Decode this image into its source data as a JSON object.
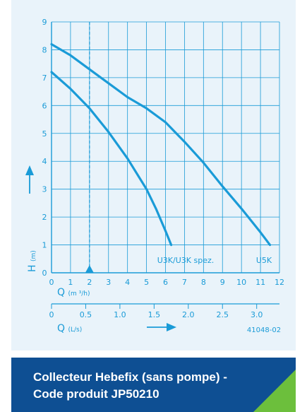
{
  "chart_data": {
    "type": "line",
    "title": "",
    "ylabel": "H",
    "ylabel_unit": "(m)",
    "xlabel_primary": "Q",
    "xlabel_primary_unit": "(m ³/h)",
    "xlabel_secondary": "Q",
    "xlabel_secondary_unit": "(L/s)",
    "xlim": [
      0,
      12
    ],
    "ylim": [
      0,
      9
    ],
    "x_ticks": [
      "0",
      "1",
      "2",
      "3",
      "4",
      "5",
      "6",
      "7",
      "8",
      "9",
      "10",
      "11",
      "12"
    ],
    "y_ticks": [
      "0",
      "1",
      "2",
      "3",
      "4",
      "5",
      "6",
      "7",
      "8",
      "9"
    ],
    "secondary_ticks": [
      "0",
      "0.5",
      "1.0",
      "1.5",
      "2.0",
      "2.5",
      "3.0"
    ],
    "secondary_tick_values": [
      0,
      0.5,
      1.0,
      1.5,
      2.0,
      2.5,
      3.0
    ],
    "grid": true,
    "marker_x": 2,
    "series": [
      {
        "name": "U3K/U3K spez.",
        "x": [
          0,
          1,
          2,
          3,
          4,
          5,
          5.5,
          6,
          6.3
        ],
        "y": [
          7.2,
          6.6,
          5.9,
          5.05,
          4.1,
          3.0,
          2.3,
          1.5,
          1.0
        ]
      },
      {
        "name": "U5K",
        "x": [
          0,
          1,
          2,
          3,
          4,
          5,
          6,
          7,
          8,
          9,
          10,
          11,
          11.5
        ],
        "y": [
          8.2,
          7.8,
          7.3,
          6.8,
          6.3,
          5.9,
          5.4,
          4.7,
          3.95,
          3.1,
          2.3,
          1.45,
          1.0
        ]
      }
    ],
    "annotation_code": "41048-02",
    "colors": {
      "line": "#1a9bd7",
      "background": "#e9f3fa"
    }
  },
  "banner": {
    "line1": "Collecteur Hebefix (sans pompe) -",
    "line2": "Code produit JP50210",
    "colors": {
      "background": "#0e4f93",
      "accent": "#6cbf3c"
    }
  }
}
